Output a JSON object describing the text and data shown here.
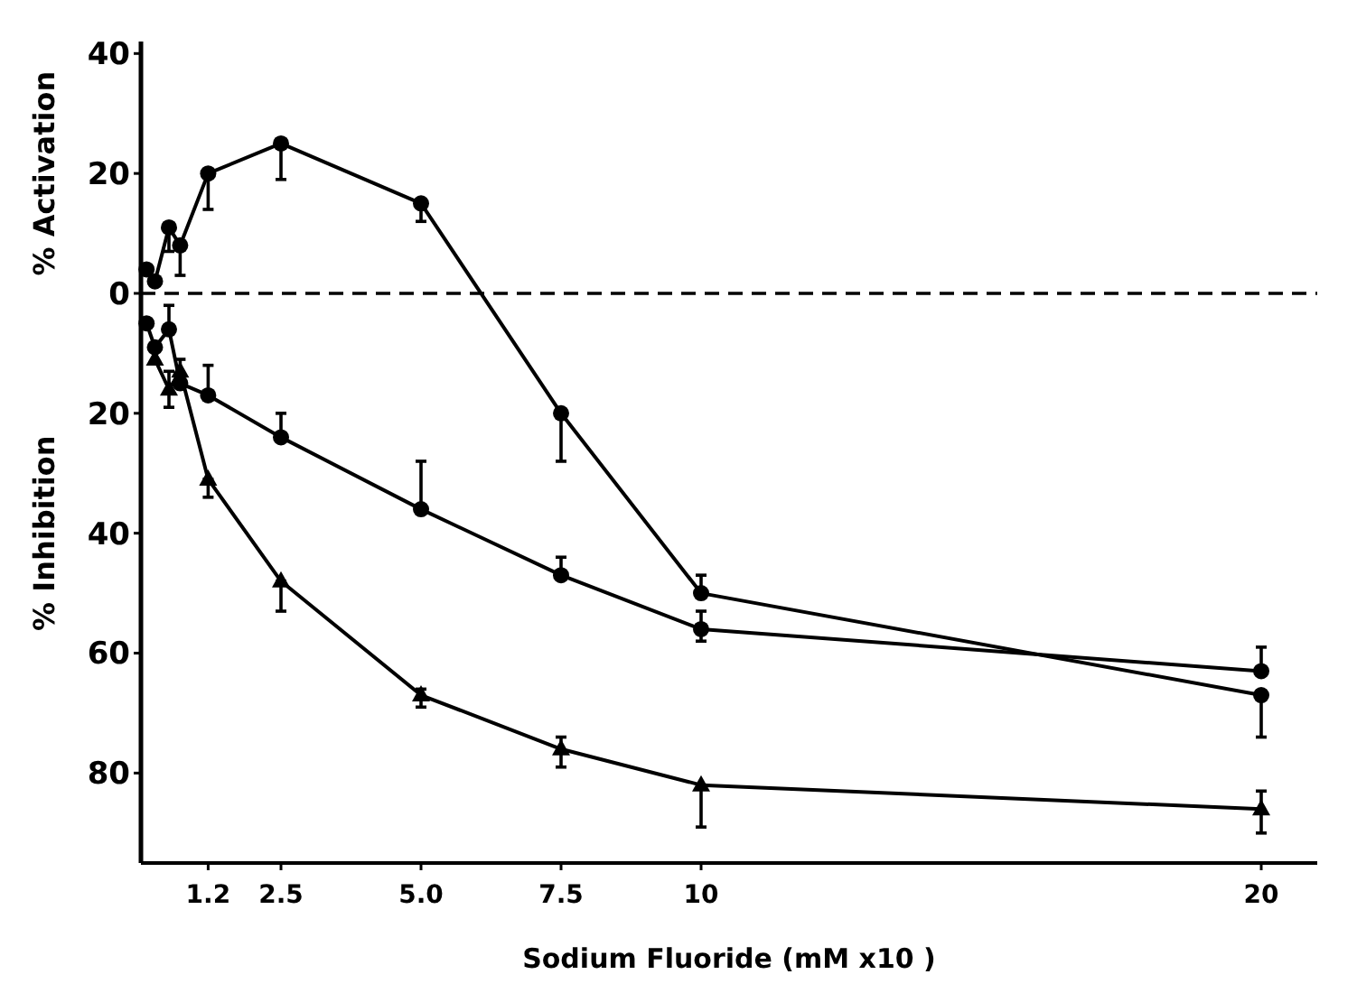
{
  "chart_data": {
    "type": "line",
    "xlabel": "Sodium Fluoride (mM x10 )",
    "ylabel": "% Activation",
    "annotations": [
      "% Inhibition"
    ],
    "xlim": [
      0,
      21
    ],
    "ylim": [
      -95,
      42
    ],
    "xticks": [
      1.2,
      2.5,
      {
        "value": 5,
        "label": "5.0"
      },
      7.5,
      10,
      20
    ],
    "yticks": [
      40,
      20,
      0,
      {
        "value": -20,
        "label": "20"
      },
      {
        "value": -40,
        "label": "40"
      },
      {
        "value": -60,
        "label": "60"
      },
      {
        "value": -80,
        "label": "80"
      }
    ],
    "grid": false,
    "line_style": "solid",
    "ref_lines": [
      {
        "axis": "y",
        "value": 0,
        "line_style": "dashed",
        "color": "#000000"
      }
    ],
    "series": [
      {
        "color": "#000000",
        "marker": "circle",
        "x": [
          0.1,
          0.25,
          0.5,
          0.7,
          1.2,
          2.5,
          5,
          7.5,
          10,
          20
        ],
        "values": [
          4,
          2,
          11,
          8,
          20,
          25,
          15,
          -20,
          -50,
          -67
        ],
        "errors": [
          null,
          null,
          [
            7,
            11
          ],
          [
            3,
            8
          ],
          [
            14,
            20
          ],
          [
            19,
            25
          ],
          [
            12,
            15
          ],
          [
            -28,
            -20
          ],
          [
            -50,
            -47
          ],
          [
            -74,
            -67
          ]
        ]
      },
      {
        "color": "#000000",
        "marker": "circle",
        "x": [
          0.1,
          0.25,
          0.5,
          0.7,
          1.2,
          2.5,
          5,
          7.5,
          10,
          20
        ],
        "values": [
          -5,
          -9,
          -6,
          -15,
          -17,
          -24,
          -36,
          -47,
          -56,
          -63
        ],
        "errors": [
          null,
          null,
          [
            -6,
            -2
          ],
          [
            -15,
            -11
          ],
          [
            -17,
            -12
          ],
          [
            -24,
            -20
          ],
          [
            -36,
            -28
          ],
          [
            -47,
            -44
          ],
          [
            -58,
            -53
          ],
          [
            -63,
            -59
          ]
        ]
      },
      {
        "color": "#000000",
        "marker": "triangle",
        "x": [
          0.25,
          0.5,
          0.7,
          1.2,
          2.5,
          5,
          7.5,
          10,
          20
        ],
        "values": [
          -11,
          -16,
          -13,
          -31,
          -48,
          -67,
          -76,
          -82,
          -86
        ],
        "errors": [
          null,
          [
            -19,
            -13
          ],
          null,
          [
            -34,
            -31
          ],
          [
            -53,
            -48
          ],
          [
            -69,
            -66
          ],
          [
            -79,
            -74
          ],
          [
            -89,
            -82
          ],
          [
            -90,
            -83
          ]
        ]
      }
    ]
  }
}
